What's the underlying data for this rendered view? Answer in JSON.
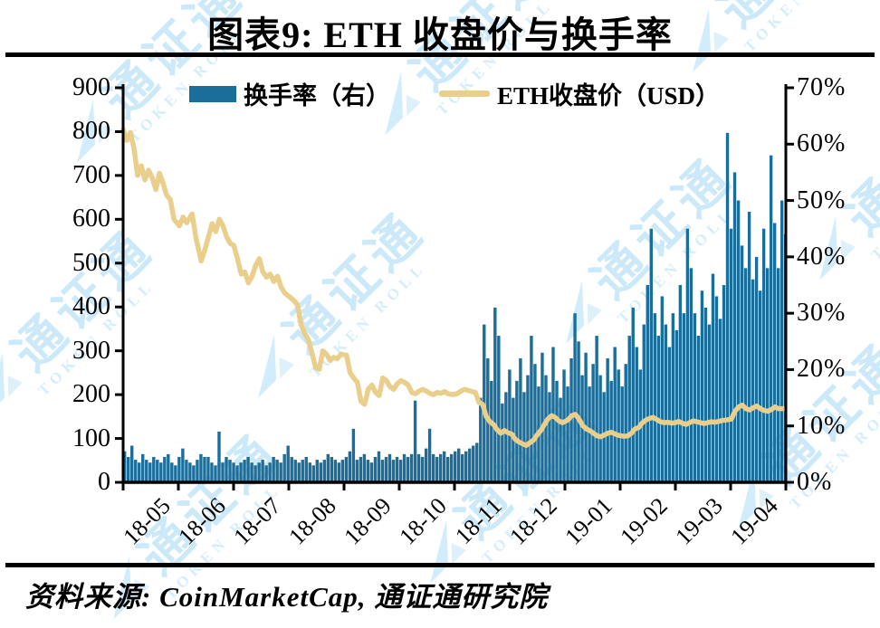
{
  "header": {
    "title": "图表9:  ETH 收盘价与换手率"
  },
  "footer": {
    "source": "资料来源: CoinMarketCap, 通证通研究院"
  },
  "watermark": {
    "cn": "通证通",
    "en": "TOKEN ROLL"
  },
  "legend": {
    "items": [
      {
        "label": "换手率（右）",
        "swatch": "bar",
        "color": "#1b6d9a"
      },
      {
        "label": "ETH收盘价（USD）",
        "swatch": "line",
        "color": "#e9ce8c"
      }
    ]
  },
  "chart_data": {
    "type": "combo",
    "title": "图表9: ETH 收盘价与换手率",
    "x_categories": [
      "18-05",
      "18-06",
      "18-07",
      "18-08",
      "18-09",
      "18-10",
      "18-11",
      "18-12",
      "19-01",
      "19-02",
      "19-03",
      "19-04"
    ],
    "days_total": 365,
    "grid": false,
    "legend_position": "top-center",
    "left_axis": {
      "title": "ETH收盘价（USD）",
      "min": 0,
      "max": 900,
      "ticks": [
        900,
        800,
        700,
        600,
        500,
        400,
        300,
        200,
        100,
        0
      ]
    },
    "right_axis": {
      "title": "换手率",
      "min": 0,
      "max": 70,
      "unit": "%",
      "ticks_pct": [
        70,
        60,
        50,
        40,
        30,
        20,
        10,
        0
      ]
    },
    "series": [
      {
        "name": "换手率（右）",
        "type": "bar",
        "axis": "right",
        "unit": "%",
        "color": "#1b6d9a",
        "day_step": 2,
        "values": [
          5.5,
          4.5,
          6.5,
          4,
          3.5,
          5,
          4,
          3.5,
          4.5,
          4,
          3.5,
          4.5,
          5,
          3.5,
          3,
          4.5,
          6,
          4,
          3.5,
          3,
          4,
          5,
          4.5,
          4.5,
          3.5,
          3,
          9,
          3.5,
          4.5,
          4,
          3.5,
          3,
          3.5,
          4,
          4.5,
          3.5,
          3,
          3.5,
          4,
          3,
          3.5,
          4.5,
          4,
          3.5,
          5,
          6.5,
          4.5,
          4,
          3.5,
          4,
          4.5,
          3.5,
          3,
          4,
          3.5,
          4,
          5,
          4.5,
          4,
          3.5,
          4,
          4.5,
          5.5,
          9.5,
          4,
          4.5,
          5,
          4,
          3.5,
          4.5,
          5.5,
          4,
          4.5,
          5,
          4,
          4.5,
          4,
          5,
          4.5,
          5,
          14.5,
          5,
          4.5,
          6,
          9.5,
          5,
          4.5,
          5,
          5.5,
          4.5,
          5,
          5.5,
          6,
          5,
          5.5,
          6,
          6.5,
          7,
          15,
          28,
          22,
          18,
          31,
          26,
          14,
          16,
          20,
          15,
          18,
          22,
          16,
          19,
          26,
          21,
          17,
          23,
          19,
          16,
          24,
          18,
          15,
          20,
          17,
          22,
          30,
          25,
          19,
          23,
          17,
          21,
          26,
          19,
          16,
          22,
          18,
          24,
          20,
          17,
          21,
          26,
          31,
          24,
          20,
          28,
          35,
          45,
          30,
          26,
          33,
          28,
          24,
          30,
          27,
          35,
          30,
          45,
          38,
          30,
          26,
          34,
          31,
          28,
          37,
          33,
          29,
          35,
          62,
          45,
          55,
          50,
          42,
          38,
          48,
          36,
          40,
          34,
          45,
          38,
          58,
          46,
          38,
          50,
          44
        ]
      },
      {
        "name": "ETH收盘价（USD）",
        "type": "line",
        "axis": "left",
        "unit": "USD",
        "color": "#e9ce8c",
        "points": [
          [
            0,
            805
          ],
          [
            2,
            780
          ],
          [
            4,
            798
          ],
          [
            6,
            762
          ],
          [
            8,
            700
          ],
          [
            10,
            722
          ],
          [
            12,
            690
          ],
          [
            14,
            712
          ],
          [
            16,
            695
          ],
          [
            18,
            668
          ],
          [
            20,
            705
          ],
          [
            22,
            682
          ],
          [
            24,
            655
          ],
          [
            26,
            645
          ],
          [
            28,
            600
          ],
          [
            31,
            585
          ],
          [
            33,
            605
          ],
          [
            35,
            592
          ],
          [
            38,
            612
          ],
          [
            40,
            560
          ],
          [
            43,
            505
          ],
          [
            45,
            530
          ],
          [
            47,
            560
          ],
          [
            49,
            590
          ],
          [
            51,
            572
          ],
          [
            53,
            600
          ],
          [
            55,
            585
          ],
          [
            57,
            560
          ],
          [
            59,
            545
          ],
          [
            61,
            540
          ],
          [
            63,
            510
          ],
          [
            65,
            475
          ],
          [
            67,
            480
          ],
          [
            69,
            455
          ],
          [
            71,
            470
          ],
          [
            73,
            495
          ],
          [
            75,
            510
          ],
          [
            77,
            480
          ],
          [
            79,
            468
          ],
          [
            81,
            475
          ],
          [
            83,
            458
          ],
          [
            85,
            470
          ],
          [
            87,
            445
          ],
          [
            89,
            432
          ],
          [
            92,
            422
          ],
          [
            94,
            415
          ],
          [
            96,
            405
          ],
          [
            98,
            360
          ],
          [
            100,
            340
          ],
          [
            102,
            325
          ],
          [
            104,
            295
          ],
          [
            106,
            262
          ],
          [
            108,
            258
          ],
          [
            110,
            300
          ],
          [
            112,
            292
          ],
          [
            114,
            278
          ],
          [
            116,
            285
          ],
          [
            118,
            282
          ],
          [
            120,
            292
          ],
          [
            123,
            290
          ],
          [
            125,
            250
          ],
          [
            127,
            238
          ],
          [
            129,
            228
          ],
          [
            131,
            185
          ],
          [
            133,
            178
          ],
          [
            135,
            212
          ],
          [
            137,
            222
          ],
          [
            139,
            205
          ],
          [
            141,
            198
          ],
          [
            143,
            238
          ],
          [
            145,
            232
          ],
          [
            147,
            218
          ],
          [
            149,
            212
          ],
          [
            151,
            225
          ],
          [
            153,
            232
          ],
          [
            155,
            228
          ],
          [
            157,
            222
          ],
          [
            159,
            205
          ],
          [
            161,
            202
          ],
          [
            163,
            208
          ],
          [
            165,
            212
          ],
          [
            167,
            208
          ],
          [
            169,
            203
          ],
          [
            171,
            200
          ],
          [
            173,
            205
          ],
          [
            175,
            203
          ],
          [
            177,
            207
          ],
          [
            179,
            202
          ],
          [
            181,
            200
          ],
          [
            184,
            202
          ],
          [
            186,
            208
          ],
          [
            188,
            212
          ],
          [
            190,
            210
          ],
          [
            192,
            207
          ],
          [
            194,
            205
          ],
          [
            196,
            182
          ],
          [
            198,
            178
          ],
          [
            200,
            150
          ],
          [
            202,
            138
          ],
          [
            204,
            132
          ],
          [
            206,
            120
          ],
          [
            208,
            112
          ],
          [
            210,
            118
          ],
          [
            212,
            113
          ],
          [
            214,
            110
          ],
          [
            216,
            98
          ],
          [
            218,
            92
          ],
          [
            220,
            88
          ],
          [
            222,
            84
          ],
          [
            224,
            90
          ],
          [
            226,
            96
          ],
          [
            228,
            108
          ],
          [
            230,
            118
          ],
          [
            232,
            132
          ],
          [
            234,
            145
          ],
          [
            236,
            152
          ],
          [
            238,
            148
          ],
          [
            240,
            140
          ],
          [
            242,
            136
          ],
          [
            245,
            142
          ],
          [
            247,
            152
          ],
          [
            249,
            155
          ],
          [
            251,
            145
          ],
          [
            253,
            130
          ],
          [
            255,
            122
          ],
          [
            257,
            118
          ],
          [
            259,
            112
          ],
          [
            261,
            106
          ],
          [
            263,
            104
          ],
          [
            265,
            108
          ],
          [
            267,
            112
          ],
          [
            269,
            114
          ],
          [
            271,
            110
          ],
          [
            273,
            107
          ],
          [
            276,
            105
          ],
          [
            278,
            106
          ],
          [
            280,
            112
          ],
          [
            282,
            122
          ],
          [
            284,
            125
          ],
          [
            286,
            136
          ],
          [
            288,
            142
          ],
          [
            290,
            146
          ],
          [
            292,
            148
          ],
          [
            294,
            143
          ],
          [
            296,
            138
          ],
          [
            298,
            136
          ],
          [
            300,
            137
          ],
          [
            302,
            135
          ],
          [
            304,
            136
          ],
          [
            306,
            139
          ],
          [
            308,
            135
          ],
          [
            310,
            132
          ],
          [
            312,
            136
          ],
          [
            314,
            140
          ],
          [
            316,
            138
          ],
          [
            318,
            136
          ],
          [
            320,
            134
          ],
          [
            322,
            136
          ],
          [
            324,
            138
          ],
          [
            326,
            137
          ],
          [
            328,
            139
          ],
          [
            330,
            141
          ],
          [
            332,
            142
          ],
          [
            335,
            144
          ],
          [
            337,
            162
          ],
          [
            339,
            172
          ],
          [
            341,
            176
          ],
          [
            343,
            168
          ],
          [
            345,
            165
          ],
          [
            347,
            170
          ],
          [
            349,
            174
          ],
          [
            351,
            168
          ],
          [
            353,
            164
          ],
          [
            355,
            162
          ],
          [
            357,
            166
          ],
          [
            359,
            172
          ],
          [
            361,
            168
          ],
          [
            364,
            168
          ]
        ]
      }
    ]
  }
}
